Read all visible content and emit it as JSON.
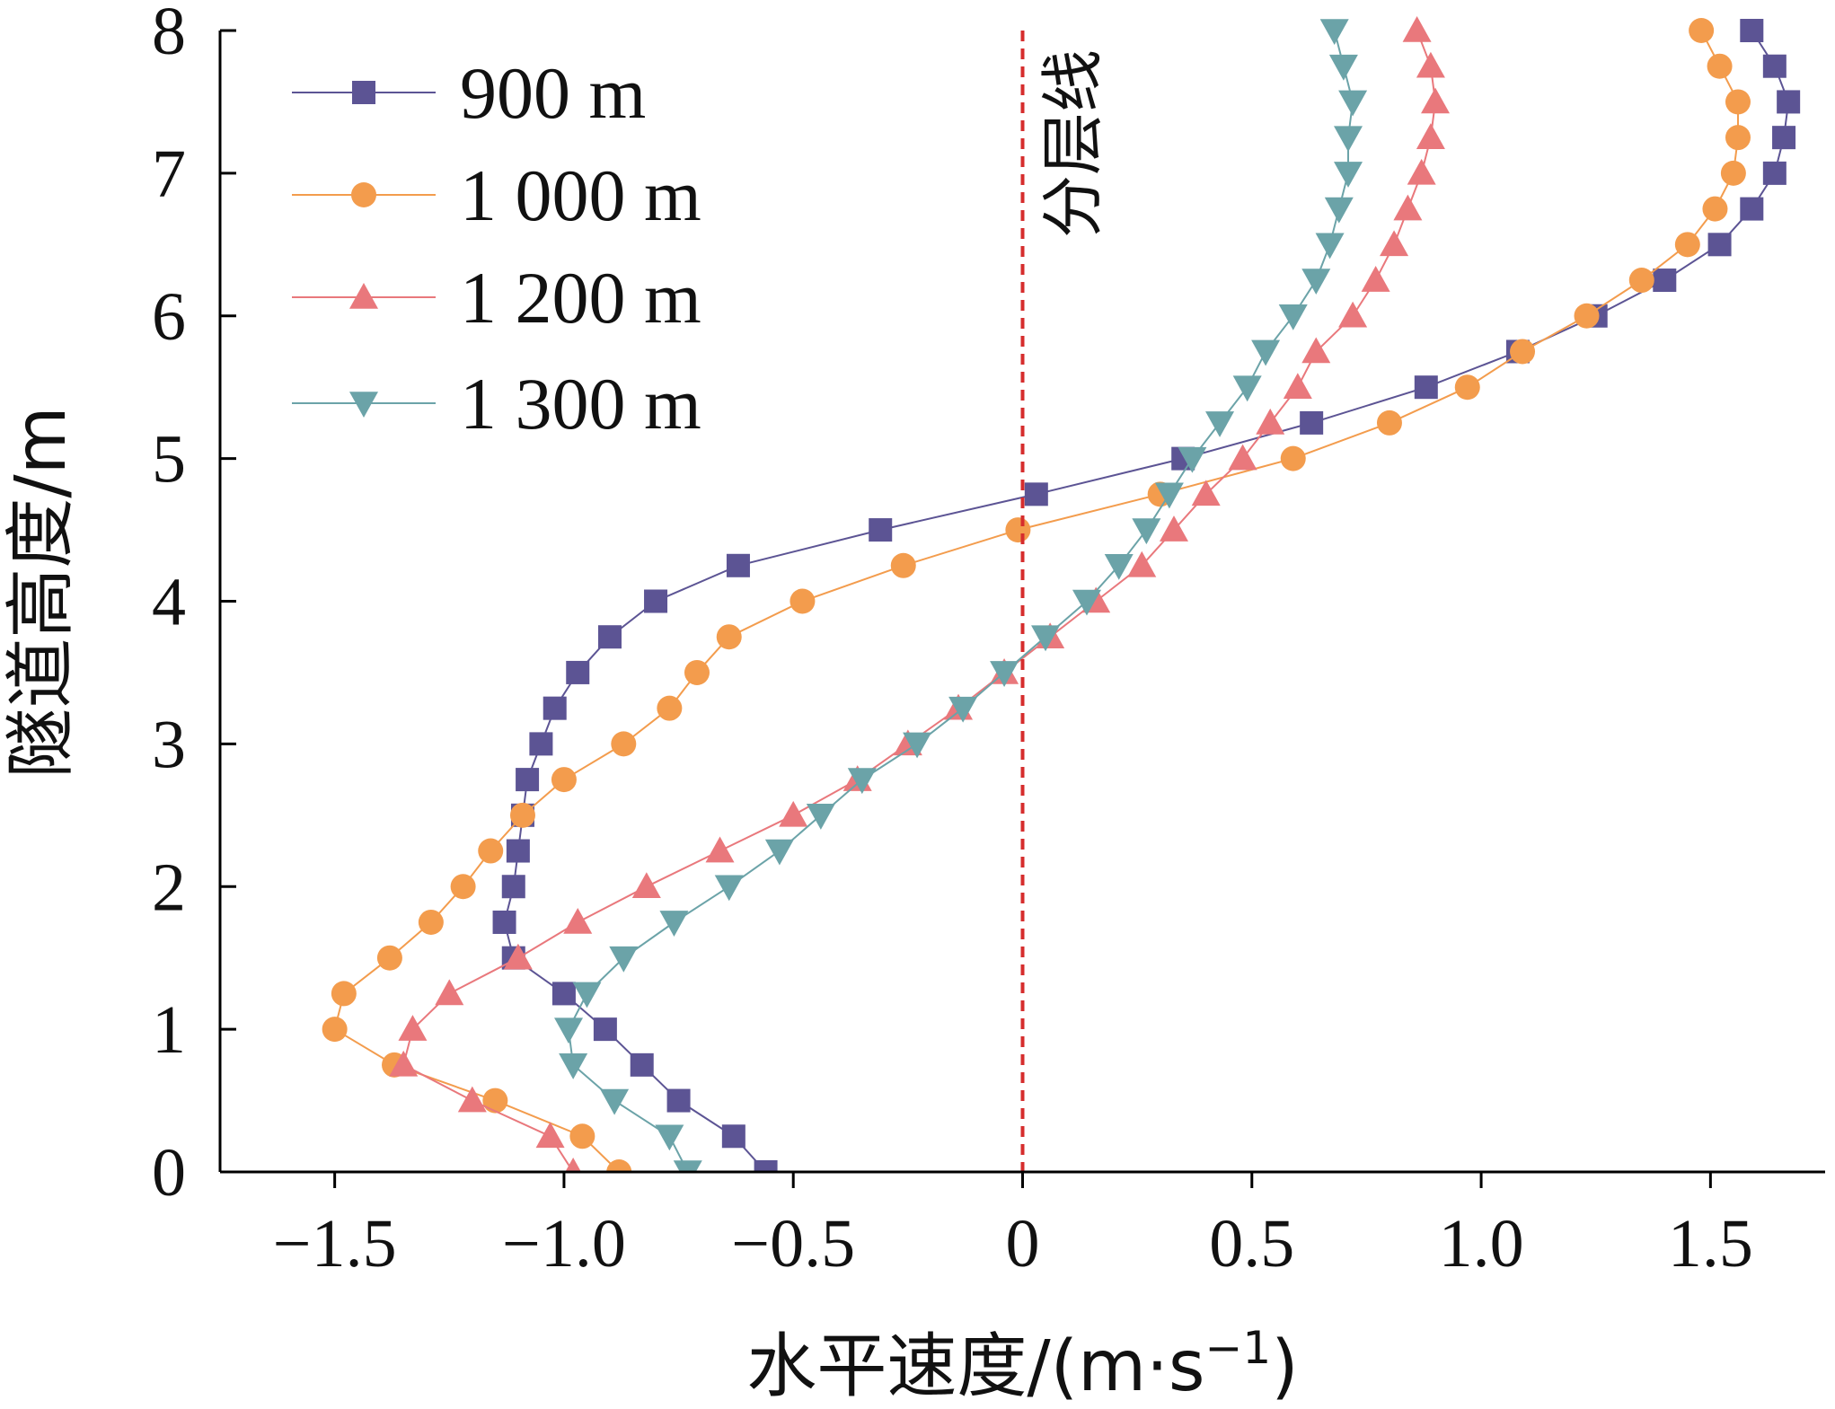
{
  "chart_data": {
    "type": "line",
    "xlabel_prefix": "水平速度/(m·s",
    "xlabel_sup": "−1",
    "xlabel_suffix": ")",
    "ylabel": "隧道高度/m",
    "xlim": [
      -1.75,
      1.75
    ],
    "ylim": [
      0,
      8
    ],
    "x_ticks": [
      -1.5,
      -1.0,
      -0.5,
      0,
      0.5,
      1.0,
      1.5
    ],
    "x_tick_labels": [
      "−1.5",
      "−1.0",
      "−0.5",
      "0",
      "0.5",
      "1.0",
      "1.5"
    ],
    "y_ticks": [
      0,
      1,
      2,
      3,
      4,
      5,
      6,
      7,
      8
    ],
    "y_tick_labels": [
      "0",
      "1",
      "2",
      "3",
      "4",
      "5",
      "6",
      "7",
      "8"
    ],
    "grid": false,
    "legend_position": "top-left",
    "annotation": {
      "text": "分层线",
      "x": 0,
      "color": "#d62d2d"
    },
    "series": [
      {
        "name": "900 m",
        "marker": "square",
        "color": "#5c5494",
        "points": [
          [
            -0.56,
            0
          ],
          [
            -0.63,
            0.25
          ],
          [
            -0.75,
            0.5
          ],
          [
            -0.83,
            0.75
          ],
          [
            -0.91,
            1.0
          ],
          [
            -1.0,
            1.25
          ],
          [
            -1.11,
            1.5
          ],
          [
            -1.13,
            1.75
          ],
          [
            -1.11,
            2.0
          ],
          [
            -1.1,
            2.25
          ],
          [
            -1.09,
            2.5
          ],
          [
            -1.08,
            2.75
          ],
          [
            -1.05,
            3.0
          ],
          [
            -1.02,
            3.25
          ],
          [
            -0.97,
            3.5
          ],
          [
            -0.9,
            3.75
          ],
          [
            -0.8,
            4.0
          ],
          [
            -0.62,
            4.25
          ],
          [
            -0.31,
            4.5
          ],
          [
            0.03,
            4.75
          ],
          [
            0.35,
            5.0
          ],
          [
            0.63,
            5.25
          ],
          [
            0.88,
            5.5
          ],
          [
            1.08,
            5.75
          ],
          [
            1.25,
            6.0
          ],
          [
            1.4,
            6.25
          ],
          [
            1.52,
            6.5
          ],
          [
            1.59,
            6.75
          ],
          [
            1.64,
            7.0
          ],
          [
            1.66,
            7.25
          ],
          [
            1.67,
            7.5
          ],
          [
            1.64,
            7.75
          ],
          [
            1.59,
            8.0
          ]
        ]
      },
      {
        "name": "1 000 m",
        "marker": "circle",
        "color": "#f39c4d",
        "points": [
          [
            -0.88,
            0
          ],
          [
            -0.96,
            0.25
          ],
          [
            -1.15,
            0.5
          ],
          [
            -1.37,
            0.75
          ],
          [
            -1.5,
            1.0
          ],
          [
            -1.48,
            1.25
          ],
          [
            -1.38,
            1.5
          ],
          [
            -1.29,
            1.75
          ],
          [
            -1.22,
            2.0
          ],
          [
            -1.16,
            2.25
          ],
          [
            -1.09,
            2.5
          ],
          [
            -1.0,
            2.75
          ],
          [
            -0.87,
            3.0
          ],
          [
            -0.77,
            3.25
          ],
          [
            -0.71,
            3.5
          ],
          [
            -0.64,
            3.75
          ],
          [
            -0.48,
            4.0
          ],
          [
            -0.26,
            4.25
          ],
          [
            -0.01,
            4.5
          ],
          [
            0.3,
            4.75
          ],
          [
            0.59,
            5.0
          ],
          [
            0.8,
            5.25
          ],
          [
            0.97,
            5.5
          ],
          [
            1.09,
            5.75
          ],
          [
            1.23,
            6.0
          ],
          [
            1.35,
            6.25
          ],
          [
            1.45,
            6.5
          ],
          [
            1.51,
            6.75
          ],
          [
            1.55,
            7.0
          ],
          [
            1.56,
            7.25
          ],
          [
            1.56,
            7.5
          ],
          [
            1.52,
            7.75
          ],
          [
            1.48,
            8.0
          ]
        ]
      },
      {
        "name": "1 200 m",
        "marker": "triangle-up",
        "color": "#e9787c",
        "points": [
          [
            -0.98,
            0
          ],
          [
            -1.03,
            0.25
          ],
          [
            -1.2,
            0.5
          ],
          [
            -1.35,
            0.75
          ],
          [
            -1.33,
            1.0
          ],
          [
            -1.25,
            1.25
          ],
          [
            -1.1,
            1.5
          ],
          [
            -0.97,
            1.75
          ],
          [
            -0.82,
            2.0
          ],
          [
            -0.66,
            2.25
          ],
          [
            -0.5,
            2.5
          ],
          [
            -0.36,
            2.75
          ],
          [
            -0.25,
            3.0
          ],
          [
            -0.14,
            3.25
          ],
          [
            -0.04,
            3.5
          ],
          [
            0.06,
            3.75
          ],
          [
            0.16,
            4.0
          ],
          [
            0.26,
            4.25
          ],
          [
            0.33,
            4.5
          ],
          [
            0.4,
            4.75
          ],
          [
            0.48,
            5.0
          ],
          [
            0.54,
            5.25
          ],
          [
            0.6,
            5.5
          ],
          [
            0.64,
            5.75
          ],
          [
            0.72,
            6.0
          ],
          [
            0.77,
            6.25
          ],
          [
            0.81,
            6.5
          ],
          [
            0.84,
            6.75
          ],
          [
            0.87,
            7.0
          ],
          [
            0.89,
            7.25
          ],
          [
            0.9,
            7.5
          ],
          [
            0.89,
            7.75
          ],
          [
            0.86,
            8.0
          ]
        ]
      },
      {
        "name": "1 300 m",
        "marker": "triangle-down",
        "color": "#6ba3a8",
        "points": [
          [
            -0.73,
            0
          ],
          [
            -0.77,
            0.25
          ],
          [
            -0.89,
            0.5
          ],
          [
            -0.98,
            0.75
          ],
          [
            -0.99,
            1.0
          ],
          [
            -0.95,
            1.25
          ],
          [
            -0.87,
            1.5
          ],
          [
            -0.76,
            1.75
          ],
          [
            -0.64,
            2.0
          ],
          [
            -0.53,
            2.25
          ],
          [
            -0.44,
            2.5
          ],
          [
            -0.35,
            2.75
          ],
          [
            -0.23,
            3.0
          ],
          [
            -0.13,
            3.25
          ],
          [
            -0.04,
            3.5
          ],
          [
            0.05,
            3.75
          ],
          [
            0.14,
            4.0
          ],
          [
            0.21,
            4.25
          ],
          [
            0.27,
            4.5
          ],
          [
            0.32,
            4.75
          ],
          [
            0.37,
            5.0
          ],
          [
            0.43,
            5.25
          ],
          [
            0.49,
            5.5
          ],
          [
            0.53,
            5.75
          ],
          [
            0.59,
            6.0
          ],
          [
            0.64,
            6.25
          ],
          [
            0.67,
            6.5
          ],
          [
            0.69,
            6.75
          ],
          [
            0.71,
            7.0
          ],
          [
            0.71,
            7.25
          ],
          [
            0.72,
            7.5
          ],
          [
            0.7,
            7.75
          ],
          [
            0.68,
            8.0
          ]
        ]
      }
    ]
  }
}
